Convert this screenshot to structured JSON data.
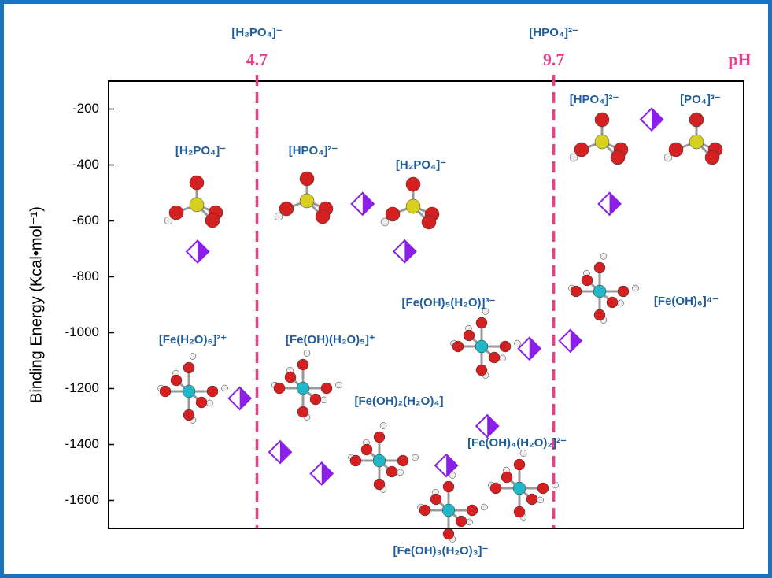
{
  "chart_data": {
    "type": "scatter",
    "y_label": "Binding Energy (Kcal•mol⁻¹)",
    "x_label": "pH",
    "xlim": [
      2.2,
      12.9
    ],
    "ylim": [
      -1700,
      -100
    ],
    "yticks": [
      -200,
      -400,
      -600,
      -800,
      -1000,
      -1200,
      -1400,
      -1600
    ],
    "vlines": [
      {
        "value": 4.7,
        "label": "4.7",
        "species": "[H₂PO₄]⁻"
      },
      {
        "value": 9.7,
        "label": "9.7",
        "species": "[HPO₄]²⁻"
      }
    ],
    "series": [
      {
        "color": "#8b1fe8",
        "x": [
          3.7,
          4.41,
          5.09,
          5.79,
          6.48,
          7.19,
          7.89,
          8.58,
          9.29,
          9.98,
          10.64,
          11.35
        ],
        "values": [
          -710,
          -1235,
          -1427,
          -1504,
          -539,
          -709,
          -1475,
          -1334,
          -1057,
          -1029,
          -539,
          -237
        ]
      }
    ],
    "annotations": [
      "[H₂PO₄]⁻",
      "[HPO₄]²⁻",
      "[H₂PO₄]⁻",
      "[HPO₄]²⁻",
      "[PO₄]³⁻",
      "[Fe(H₂O)₆]²⁺",
      "[Fe(OH)(H₂O)₅]⁺",
      "[Fe(OH)₂(H₂O)₄]",
      "[Fe(OH)₅(H₂O)]³⁻",
      "[Fe(OH)₆]⁴⁻",
      "[Fe(OH)₄(H₂O)₂]²⁻",
      "[Fe(OH)₃(H₂O)₃]⁻"
    ]
  }
}
